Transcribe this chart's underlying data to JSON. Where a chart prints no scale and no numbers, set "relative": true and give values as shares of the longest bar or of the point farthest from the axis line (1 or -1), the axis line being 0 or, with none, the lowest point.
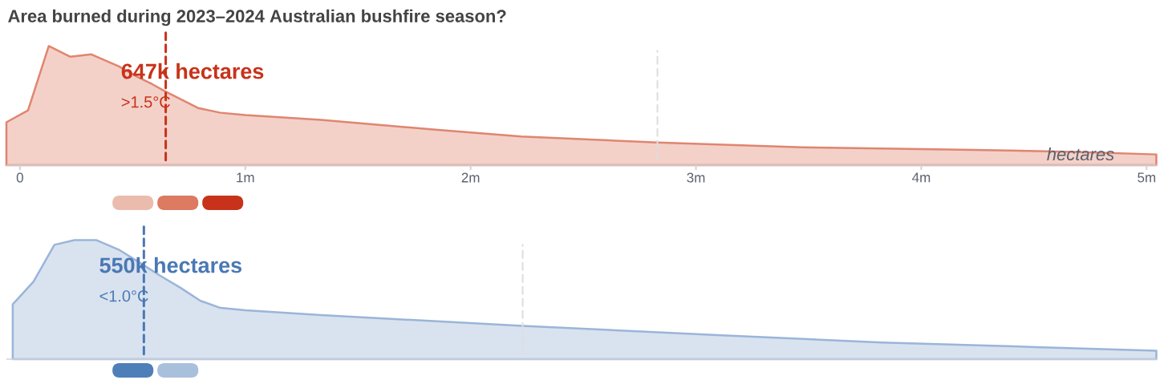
{
  "chart_data": [
    {
      "type": "area",
      "title": "Area burned during 2023–2024 Australian bushfire season?",
      "xlabel": "hectares",
      "relative": true,
      "xlim": [
        -60000,
        5045000
      ],
      "xticks": [
        0,
        {
          "value": 1000000,
          "label": "1m"
        },
        {
          "value": 2000000,
          "label": "2m"
        },
        {
          "value": 3000000,
          "label": "3m"
        },
        {
          "value": 4000000,
          "label": "4m"
        },
        {
          "value": 5000000,
          "label": "5m"
        }
      ],
      "x": [
        -60000,
        36000,
        128000,
        224000,
        317000,
        438000,
        523000,
        587000,
        644000,
        790000,
        890000,
        1000000,
        1335000,
        1833000,
        2224000,
        2829000,
        3470000,
        4181000,
        4715000,
        5043000
      ],
      "series": [
        {
          "color": "#e08570",
          "values": [
            0.36,
            0.46,
            1.0,
            0.91,
            0.93,
            0.83,
            0.74,
            0.68,
            0.62,
            0.48,
            0.44,
            0.42,
            0.38,
            0.3,
            0.24,
            0.19,
            0.15,
            0.13,
            0.11,
            0.09
          ]
        }
      ],
      "ref_lines": [
        {
          "axis": "x",
          "value": 647000,
          "label": "647k hectares",
          "color": "#c8321a",
          "line_style": "dashed"
        },
        {
          "axis": "x",
          "value": 2829000,
          "color": "#dddddd",
          "line_style": "dashed"
        }
      ],
      "annotations": [
        ">1.5°C"
      ]
    },
    {
      "type": "area",
      "relative": true,
      "tick_labels": false,
      "xlim": [
        -60000,
        5045000
      ],
      "x": [
        -32000,
        60000,
        153000,
        242000,
        338000,
        438000,
        523000,
        623000,
        712000,
        801000,
        890000,
        1000000,
        1335000,
        2231000,
        3114000,
        3826000,
        4537000,
        5043000
      ],
      "series": [
        {
          "color": "#9ab5d8",
          "values": [
            0.46,
            0.65,
            0.96,
            1.0,
            1.0,
            0.92,
            0.82,
            0.7,
            0.6,
            0.49,
            0.43,
            0.41,
            0.37,
            0.28,
            0.2,
            0.14,
            0.1,
            0.07
          ]
        }
      ],
      "ref_lines": [
        {
          "axis": "x",
          "value": 550000,
          "label": "550k hectares",
          "color": "#4a78b4",
          "line_style": "dashed"
        },
        {
          "axis": "x",
          "value": 2231000,
          "color": "#dddddd",
          "line_style": "dashed"
        }
      ],
      "annotations": [
        "<1.0°C"
      ]
    }
  ]
}
